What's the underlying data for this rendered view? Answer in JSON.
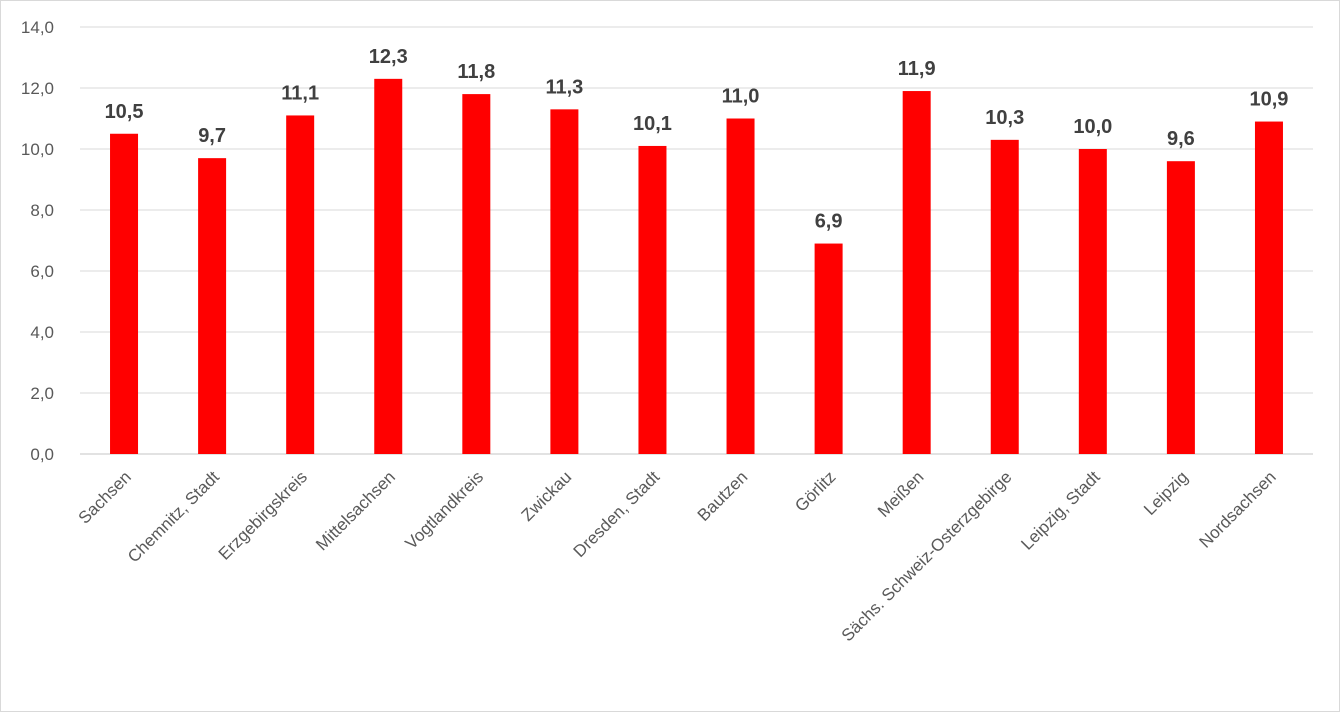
{
  "chart_data": {
    "type": "bar",
    "categories": [
      "Sachsen",
      "Chemnitz, Stadt",
      "Erzgebirgskreis",
      "Mittelsachsen",
      "Vogtlandkreis",
      "Zwickau",
      "Dresden, Stadt",
      "Bautzen",
      "Görlitz",
      "Meißen",
      "Sächs. Schweiz-Osterzgebirge",
      "Leipzig, Stadt",
      "Leipzig",
      "Nordsachsen"
    ],
    "values": [
      10.5,
      9.7,
      11.1,
      12.3,
      11.8,
      11.3,
      10.1,
      11.0,
      6.9,
      11.9,
      10.3,
      10.0,
      9.6,
      10.9
    ],
    "value_labels": [
      "10,5",
      "9,7",
      "11,1",
      "12,3",
      "11,8",
      "11,3",
      "10,1",
      "11,0",
      "6,9",
      "11,9",
      "10,3",
      "10,0",
      "9,6",
      "10,9"
    ],
    "ylim": [
      0,
      14
    ],
    "yticks": [
      0,
      2,
      4,
      6,
      8,
      10,
      12,
      14
    ],
    "ytick_labels": [
      "0,0",
      "2,0",
      "4,0",
      "6,0",
      "8,0",
      "10,0",
      "12,0",
      "14,0"
    ],
    "title": "",
    "xlabel": "",
    "ylabel": "",
    "grid": true,
    "bar_color": "#ff0000",
    "grid_color": "#d9d9d9"
  }
}
